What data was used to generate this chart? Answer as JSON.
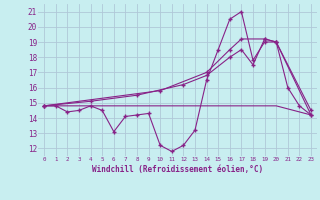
{
  "xlabel": "Windchill (Refroidissement éolien,°C)",
  "bg_color": "#c8eef0",
  "grid_color": "#b0c8d8",
  "line_color": "#882288",
  "xlim": [
    -0.5,
    23.5
  ],
  "ylim": [
    11.5,
    21.5
  ],
  "yticks": [
    12,
    13,
    14,
    15,
    16,
    17,
    18,
    19,
    20,
    21
  ],
  "xticks": [
    0,
    1,
    2,
    3,
    4,
    5,
    6,
    7,
    8,
    9,
    10,
    11,
    12,
    13,
    14,
    15,
    16,
    17,
    18,
    19,
    20,
    21,
    22,
    23
  ],
  "s1_x": [
    0,
    1,
    2,
    3,
    4,
    5,
    6,
    7,
    8,
    9,
    10,
    11,
    12,
    13,
    14,
    15,
    16,
    17,
    18,
    19,
    20,
    21,
    22,
    23
  ],
  "s1_y": [
    14.8,
    14.8,
    14.4,
    14.5,
    14.8,
    14.5,
    13.1,
    14.1,
    14.2,
    14.3,
    12.2,
    11.8,
    12.2,
    13.2,
    16.5,
    18.5,
    20.5,
    21.0,
    17.8,
    19.0,
    19.0,
    16.0,
    14.8,
    14.2
  ],
  "s2_x": [
    0,
    1,
    4,
    10,
    17,
    20,
    23
  ],
  "s2_y": [
    14.8,
    14.8,
    14.8,
    14.8,
    14.8,
    14.8,
    14.2
  ],
  "s3_x": [
    0,
    4,
    8,
    12,
    14,
    16,
    17,
    18,
    19,
    20,
    23
  ],
  "s3_y": [
    14.8,
    15.1,
    15.5,
    16.2,
    16.8,
    18.0,
    18.5,
    17.5,
    19.2,
    19.0,
    14.2
  ],
  "s4_x": [
    0,
    10,
    14,
    16,
    17,
    19,
    20,
    23
  ],
  "s4_y": [
    14.8,
    15.8,
    17.0,
    18.5,
    19.2,
    19.2,
    19.0,
    14.5
  ]
}
